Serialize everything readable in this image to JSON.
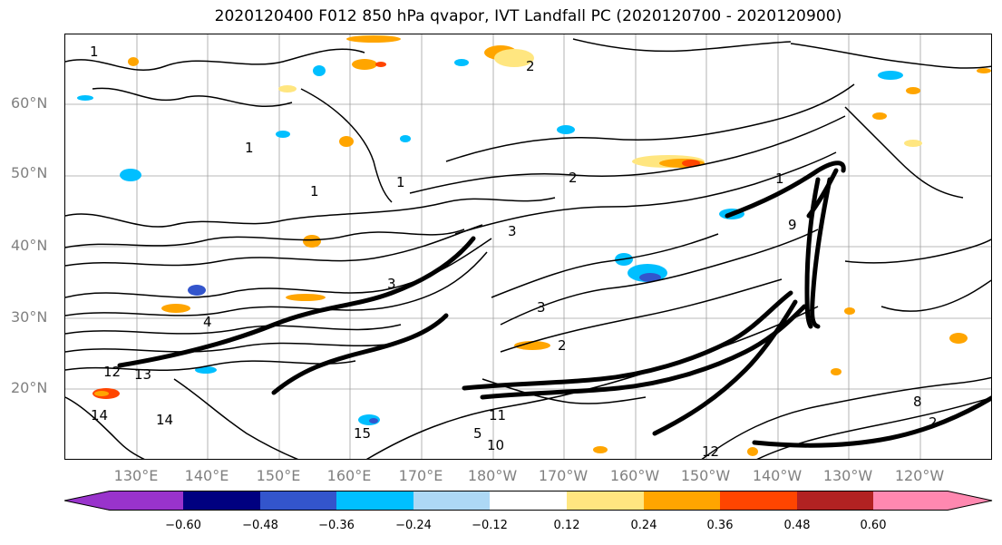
{
  "title": "2020120400 F012 850 hPa qvapor, IVT Landfall PC (2020120700 - 2020120900)",
  "lat_labels": [
    "60°N",
    "50°N",
    "40°N",
    "30°N",
    "20°N"
  ],
  "lon_labels": [
    "130°E",
    "140°E",
    "150°E",
    "160°E",
    "170°E",
    "180°W",
    "170°W",
    "160°W",
    "150°W",
    "140°W",
    "130°W",
    "120°W"
  ],
  "contour_labels": [
    "1",
    "1",
    "1",
    "1",
    "1",
    "2",
    "2",
    "2",
    "2",
    "3",
    "3",
    "3",
    "4",
    "5",
    "8",
    "9",
    "10",
    "11",
    "12",
    "12",
    "13",
    "14",
    "14",
    "15"
  ],
  "colorbar": {
    "ticks": [
      "−0.60",
      "−0.48",
      "−0.36",
      "−0.24",
      "−0.12",
      "0.12",
      "0.24",
      "0.36",
      "0.48",
      "0.60"
    ],
    "colors": [
      "#9933cc",
      "#000080",
      "#3355cc",
      "#00bfff",
      "#add8f5",
      "#ffffff",
      "#ffe680",
      "#ffa500",
      "#ff4500",
      "#b22222",
      "#ff88b0"
    ],
    "under_color": "#9933cc",
    "over_color": "#ff88b0"
  },
  "colors": {
    "gridline": "#a0a0a0",
    "contour": "#000000",
    "axis_label": "#808080"
  }
}
